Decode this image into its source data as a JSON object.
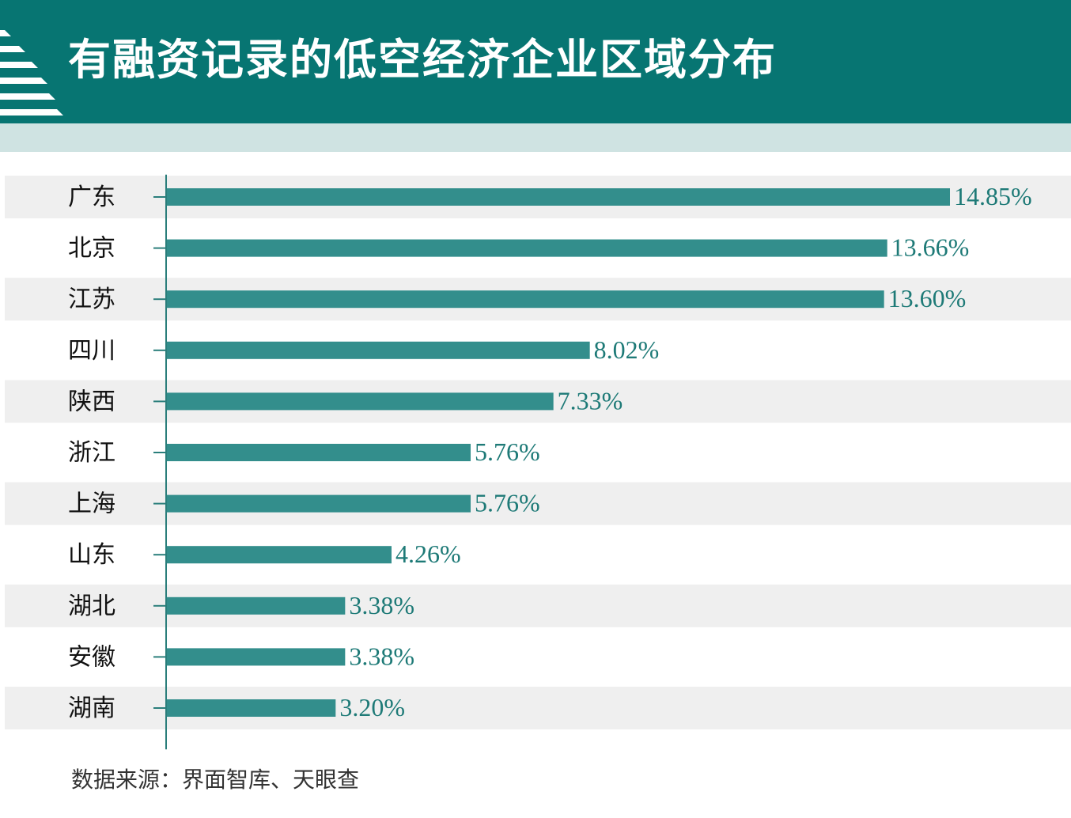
{
  "header": {
    "title": "有融资记录的低空经济企业区域分布"
  },
  "colors": {
    "header_bg": "#077572",
    "header_band": "#cfe3e2",
    "bar": "#338e8c",
    "value_label": "#1e7a77",
    "row_stripe": "#efefef",
    "axis": "#2a7e7b"
  },
  "chart_data": {
    "type": "bar",
    "orientation": "horizontal",
    "categories": [
      "广东",
      "北京",
      "江苏",
      "四川",
      "陕西",
      "浙江",
      "上海",
      "山东",
      "湖北",
      "安徽",
      "湖南"
    ],
    "values": [
      14.85,
      13.66,
      13.6,
      8.02,
      7.33,
      5.76,
      5.76,
      4.26,
      3.38,
      3.38,
      3.2
    ],
    "value_labels": [
      "14.85%",
      "13.66%",
      "13.60%",
      "8.02%",
      "7.33%",
      "5.76%",
      "5.76%",
      "4.26%",
      "3.38%",
      "3.38%",
      "3.20%"
    ],
    "xlim": [
      0,
      15
    ],
    "unit": "%",
    "grid": false,
    "alternating_row_stripes": true
  },
  "footer": {
    "source": "数据来源：界面智库、天眼查"
  }
}
